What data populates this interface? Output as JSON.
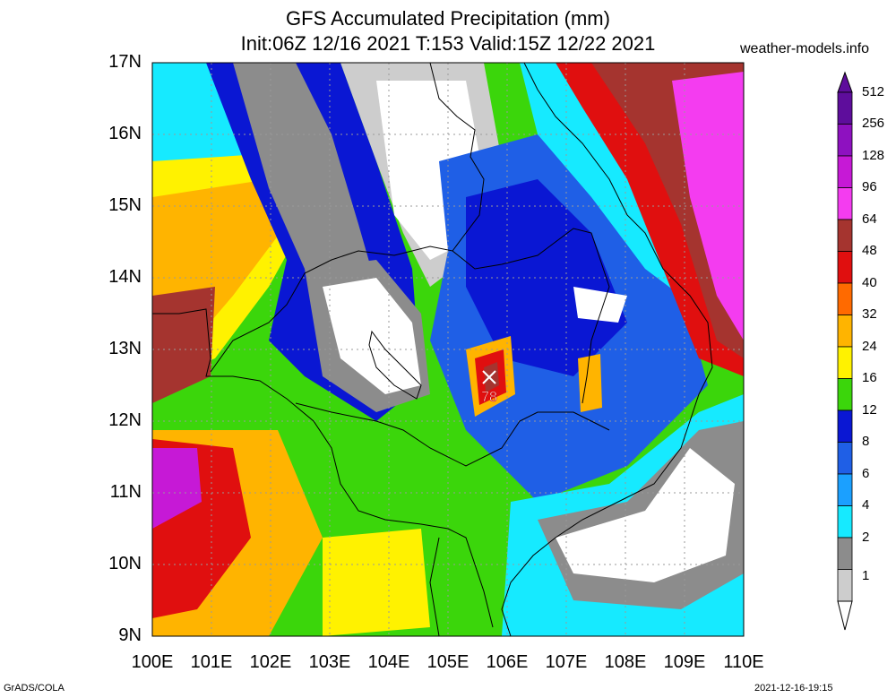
{
  "header": {
    "title": "GFS Accumulated Precipitation (mm)",
    "subtitle": "Init:06Z 12/16 2021 T:153 Valid:15Z 12/22 2021",
    "site": "weather-models.info"
  },
  "axes": {
    "lat_labels": [
      "17N",
      "16N",
      "15N",
      "14N",
      "13N",
      "12N",
      "11N",
      "10N",
      "9N"
    ],
    "lon_labels": [
      "100E",
      "101E",
      "102E",
      "103E",
      "104E",
      "105E",
      "106E",
      "107E",
      "108E",
      "109E",
      "110E"
    ]
  },
  "legend": {
    "levels": [
      "512",
      "256",
      "128",
      "96",
      "64",
      "48",
      "40",
      "32",
      "24",
      "16",
      "12",
      "8",
      "6",
      "4",
      "2",
      "1"
    ],
    "colors": [
      "#5e0d9c",
      "#8e11c0",
      "#c619d6",
      "#f43cf0",
      "#a5342f",
      "#e00f0f",
      "#ff6a00",
      "#ffb400",
      "#fff200",
      "#3bd60b",
      "#0a17d3",
      "#1f5fe6",
      "#1ba0ff",
      "#16eaff",
      "#8c8c8c",
      "#cdcdcd"
    ]
  },
  "annotation": {
    "max_value": "78"
  },
  "footer": {
    "left": "GrADS/COLA",
    "right": "2021-12-16-19:15"
  }
}
